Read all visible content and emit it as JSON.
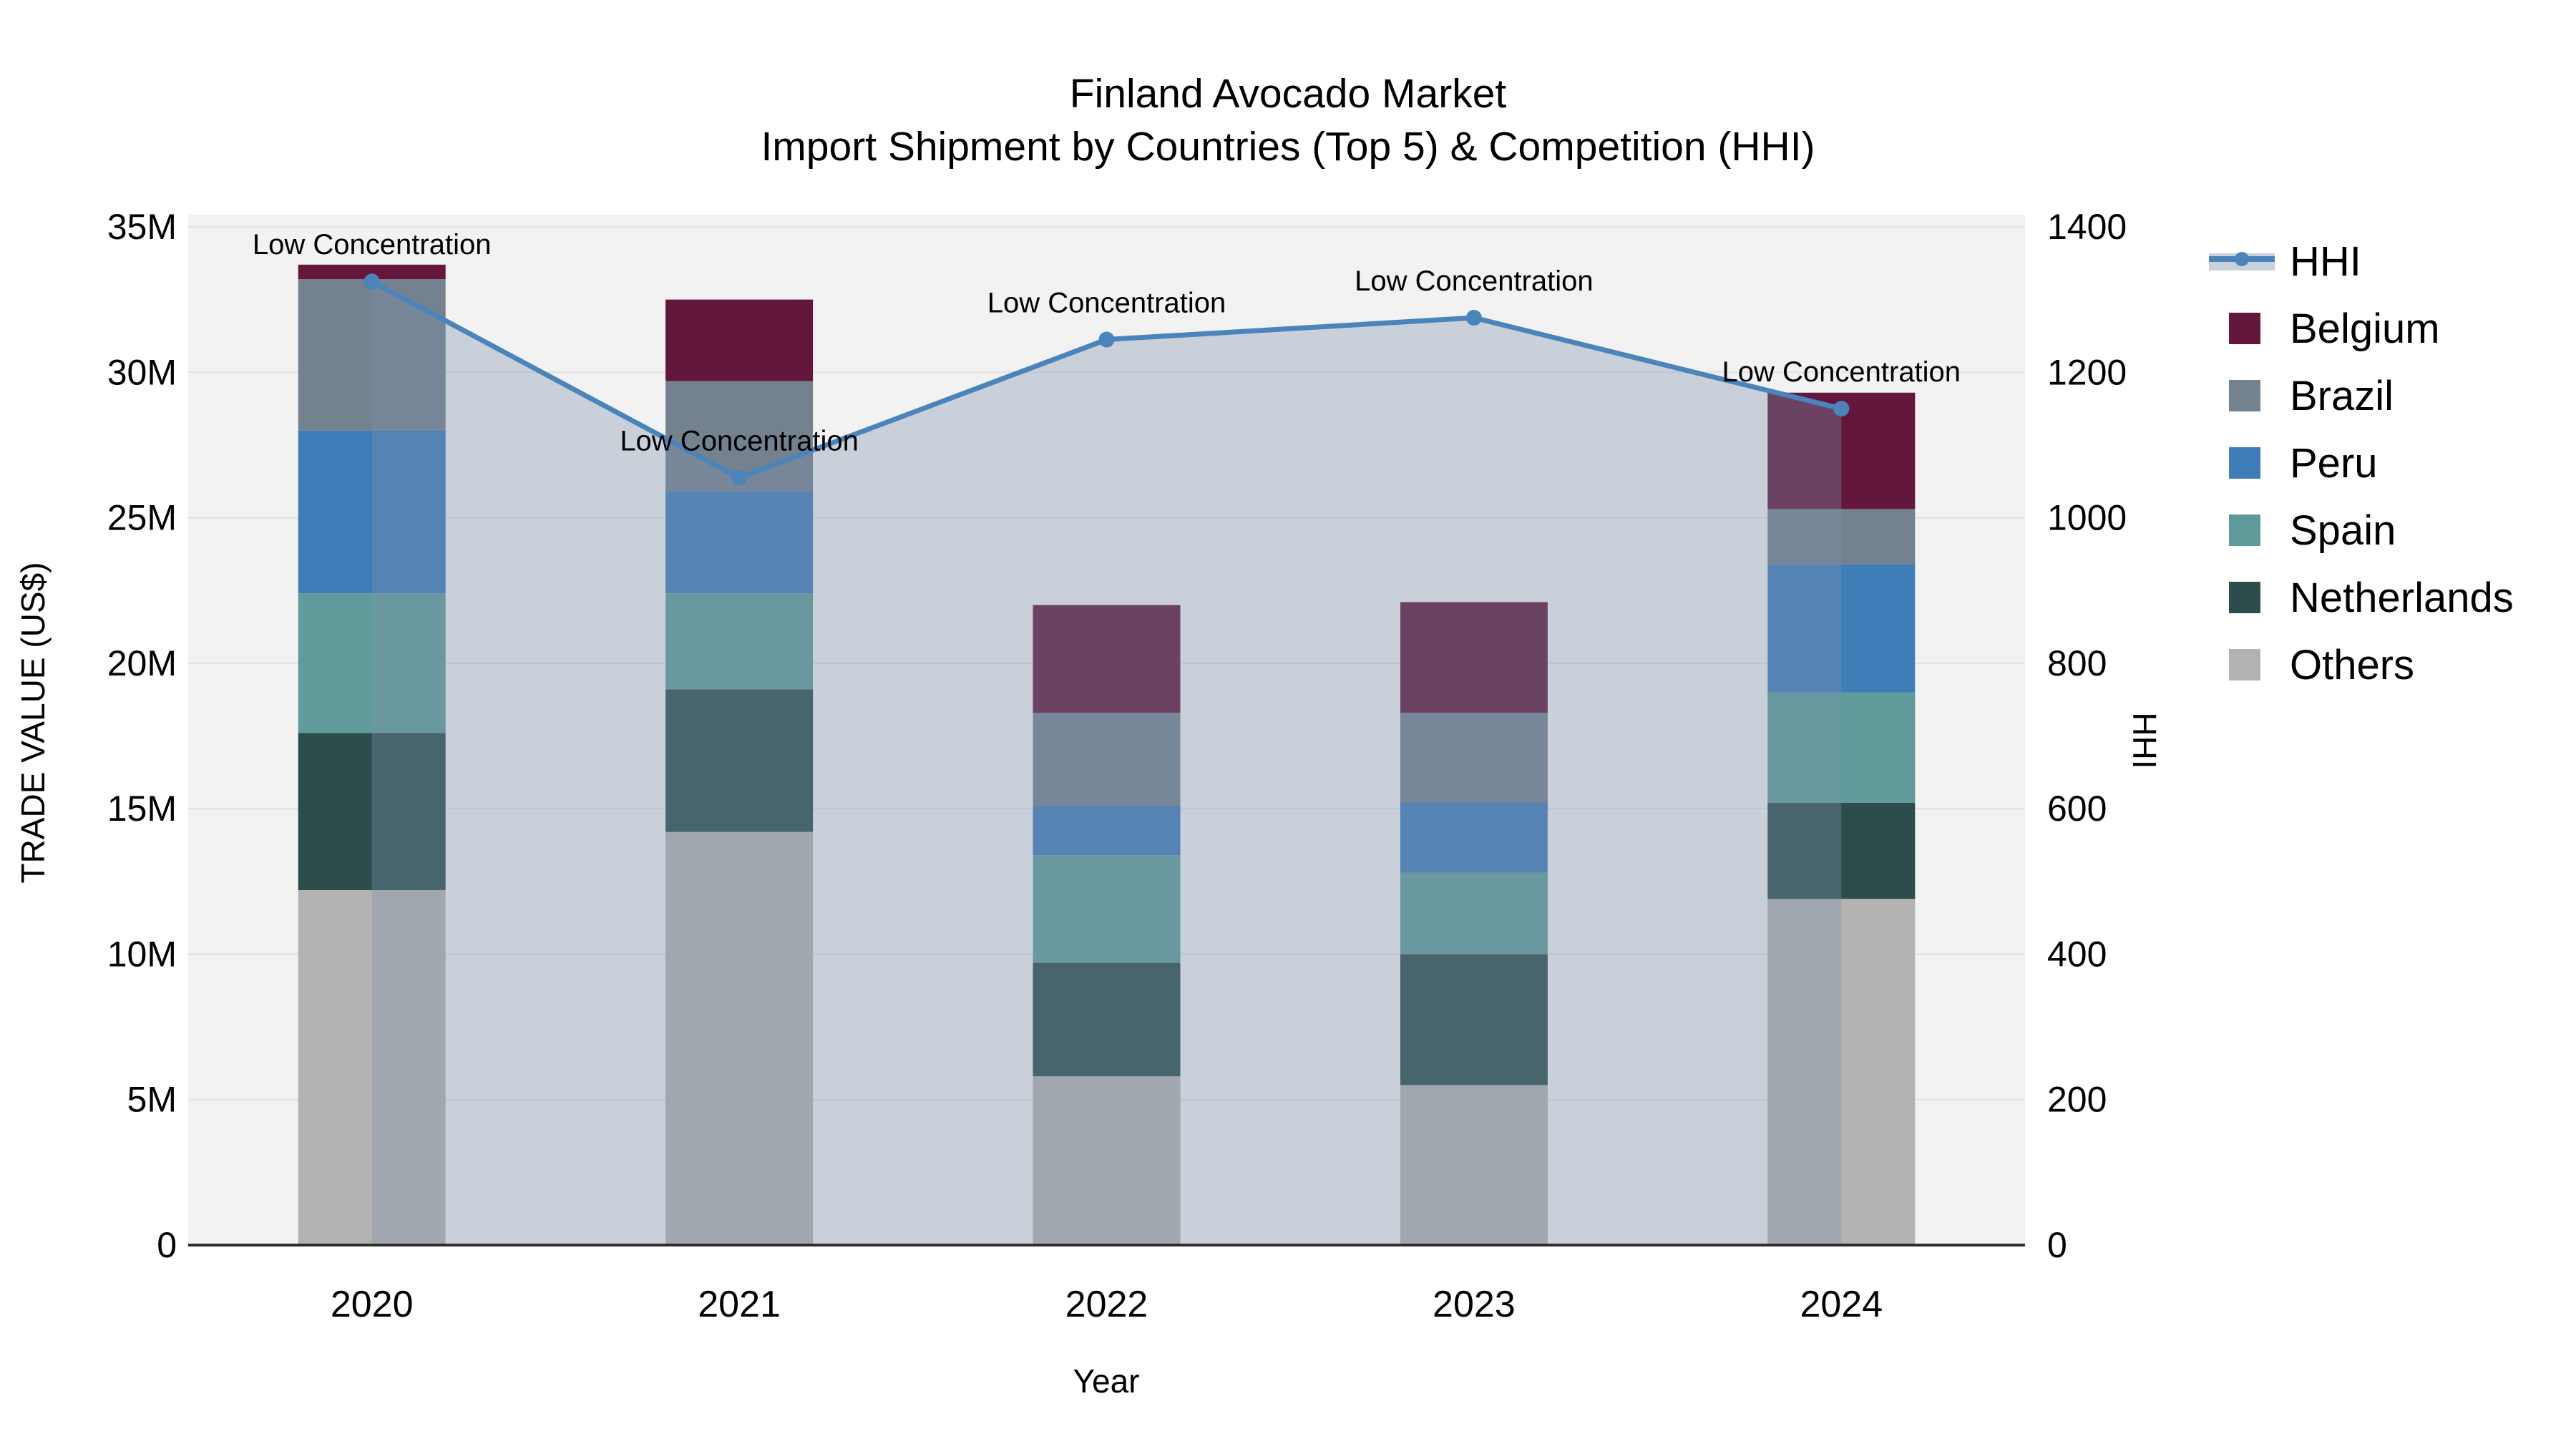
{
  "title": {
    "line1": "Finland Avocado Market",
    "line2": "Import Shipment by Countries (Top 5) & Competition (HHI)"
  },
  "axes": {
    "x_label": "Year",
    "y_left_label": "TRADE VALUE (US$)",
    "y_right_label": "HHI",
    "y_left_ticks": [
      "0",
      "5M",
      "10M",
      "15M",
      "20M",
      "25M",
      "30M",
      "35M"
    ],
    "y_right_ticks": [
      "0",
      "200",
      "400",
      "600",
      "800",
      "1000",
      "1200",
      "1400"
    ]
  },
  "legend": {
    "position": "right",
    "items": [
      {
        "label": "HHI",
        "type": "line",
        "color": "#4a84bb",
        "band_color": "#c9d2dc"
      },
      {
        "label": "Belgium",
        "type": "swatch",
        "color": "#63173b"
      },
      {
        "label": "Brazil",
        "type": "swatch",
        "color": "#74828f"
      },
      {
        "label": "Peru",
        "type": "swatch",
        "color": "#3f7db8"
      },
      {
        "label": "Spain",
        "type": "swatch",
        "color": "#5f9b9a"
      },
      {
        "label": "Netherlands",
        "type": "swatch",
        "color": "#2c4d4c"
      },
      {
        "label": "Others",
        "type": "swatch",
        "color": "#b2b2b1"
      }
    ]
  },
  "chart_data": {
    "type": "bar+line",
    "categories": [
      "2020",
      "2021",
      "2022",
      "2023",
      "2024"
    ],
    "bar_unit": "million US$ trade value",
    "stack_order_bottom_to_top": [
      "Others",
      "Netherlands",
      "Spain",
      "Peru",
      "Brazil",
      "Belgium"
    ],
    "series": [
      {
        "name": "Others",
        "color": "#b2b2b1",
        "values": [
          12.2,
          14.2,
          5.8,
          5.5,
          11.9
        ]
      },
      {
        "name": "Netherlands",
        "color": "#2c4d4c",
        "values": [
          5.4,
          4.9,
          3.9,
          4.5,
          3.3
        ]
      },
      {
        "name": "Spain",
        "color": "#5f9b9a",
        "values": [
          4.8,
          3.3,
          3.7,
          2.8,
          3.8
        ]
      },
      {
        "name": "Peru",
        "color": "#3f7db8",
        "values": [
          5.6,
          3.5,
          1.7,
          2.4,
          4.4
        ]
      },
      {
        "name": "Brazil",
        "color": "#74828f",
        "values": [
          5.2,
          3.8,
          3.2,
          3.1,
          1.9
        ]
      },
      {
        "name": "Belgium",
        "color": "#63173b",
        "values": [
          0.5,
          2.8,
          3.7,
          3.8,
          4.0
        ]
      }
    ],
    "bar_totals": [
      33.7,
      32.5,
      22.0,
      22.1,
      29.3
    ],
    "line_series": {
      "name": "HHI",
      "axis": "right",
      "color": "#4a84bb",
      "fill_color": "#7d93ad",
      "fill_opacity": 0.35,
      "values": [
        1325,
        1055,
        1245,
        1275,
        1150
      ]
    },
    "point_annotations": [
      "Low Concentration",
      "Low Concentration",
      "Low Concentration",
      "Low Concentration",
      "Low Concentration"
    ],
    "y_left_range": [
      0,
      35000000
    ],
    "y_right_range": [
      0,
      1400
    ],
    "grid": "horizontal-major",
    "legend_position": "right",
    "plot_background": "#f2f2f3",
    "grid_color": "#e3e3e5",
    "axis_line_color": "#2e2e2e"
  }
}
